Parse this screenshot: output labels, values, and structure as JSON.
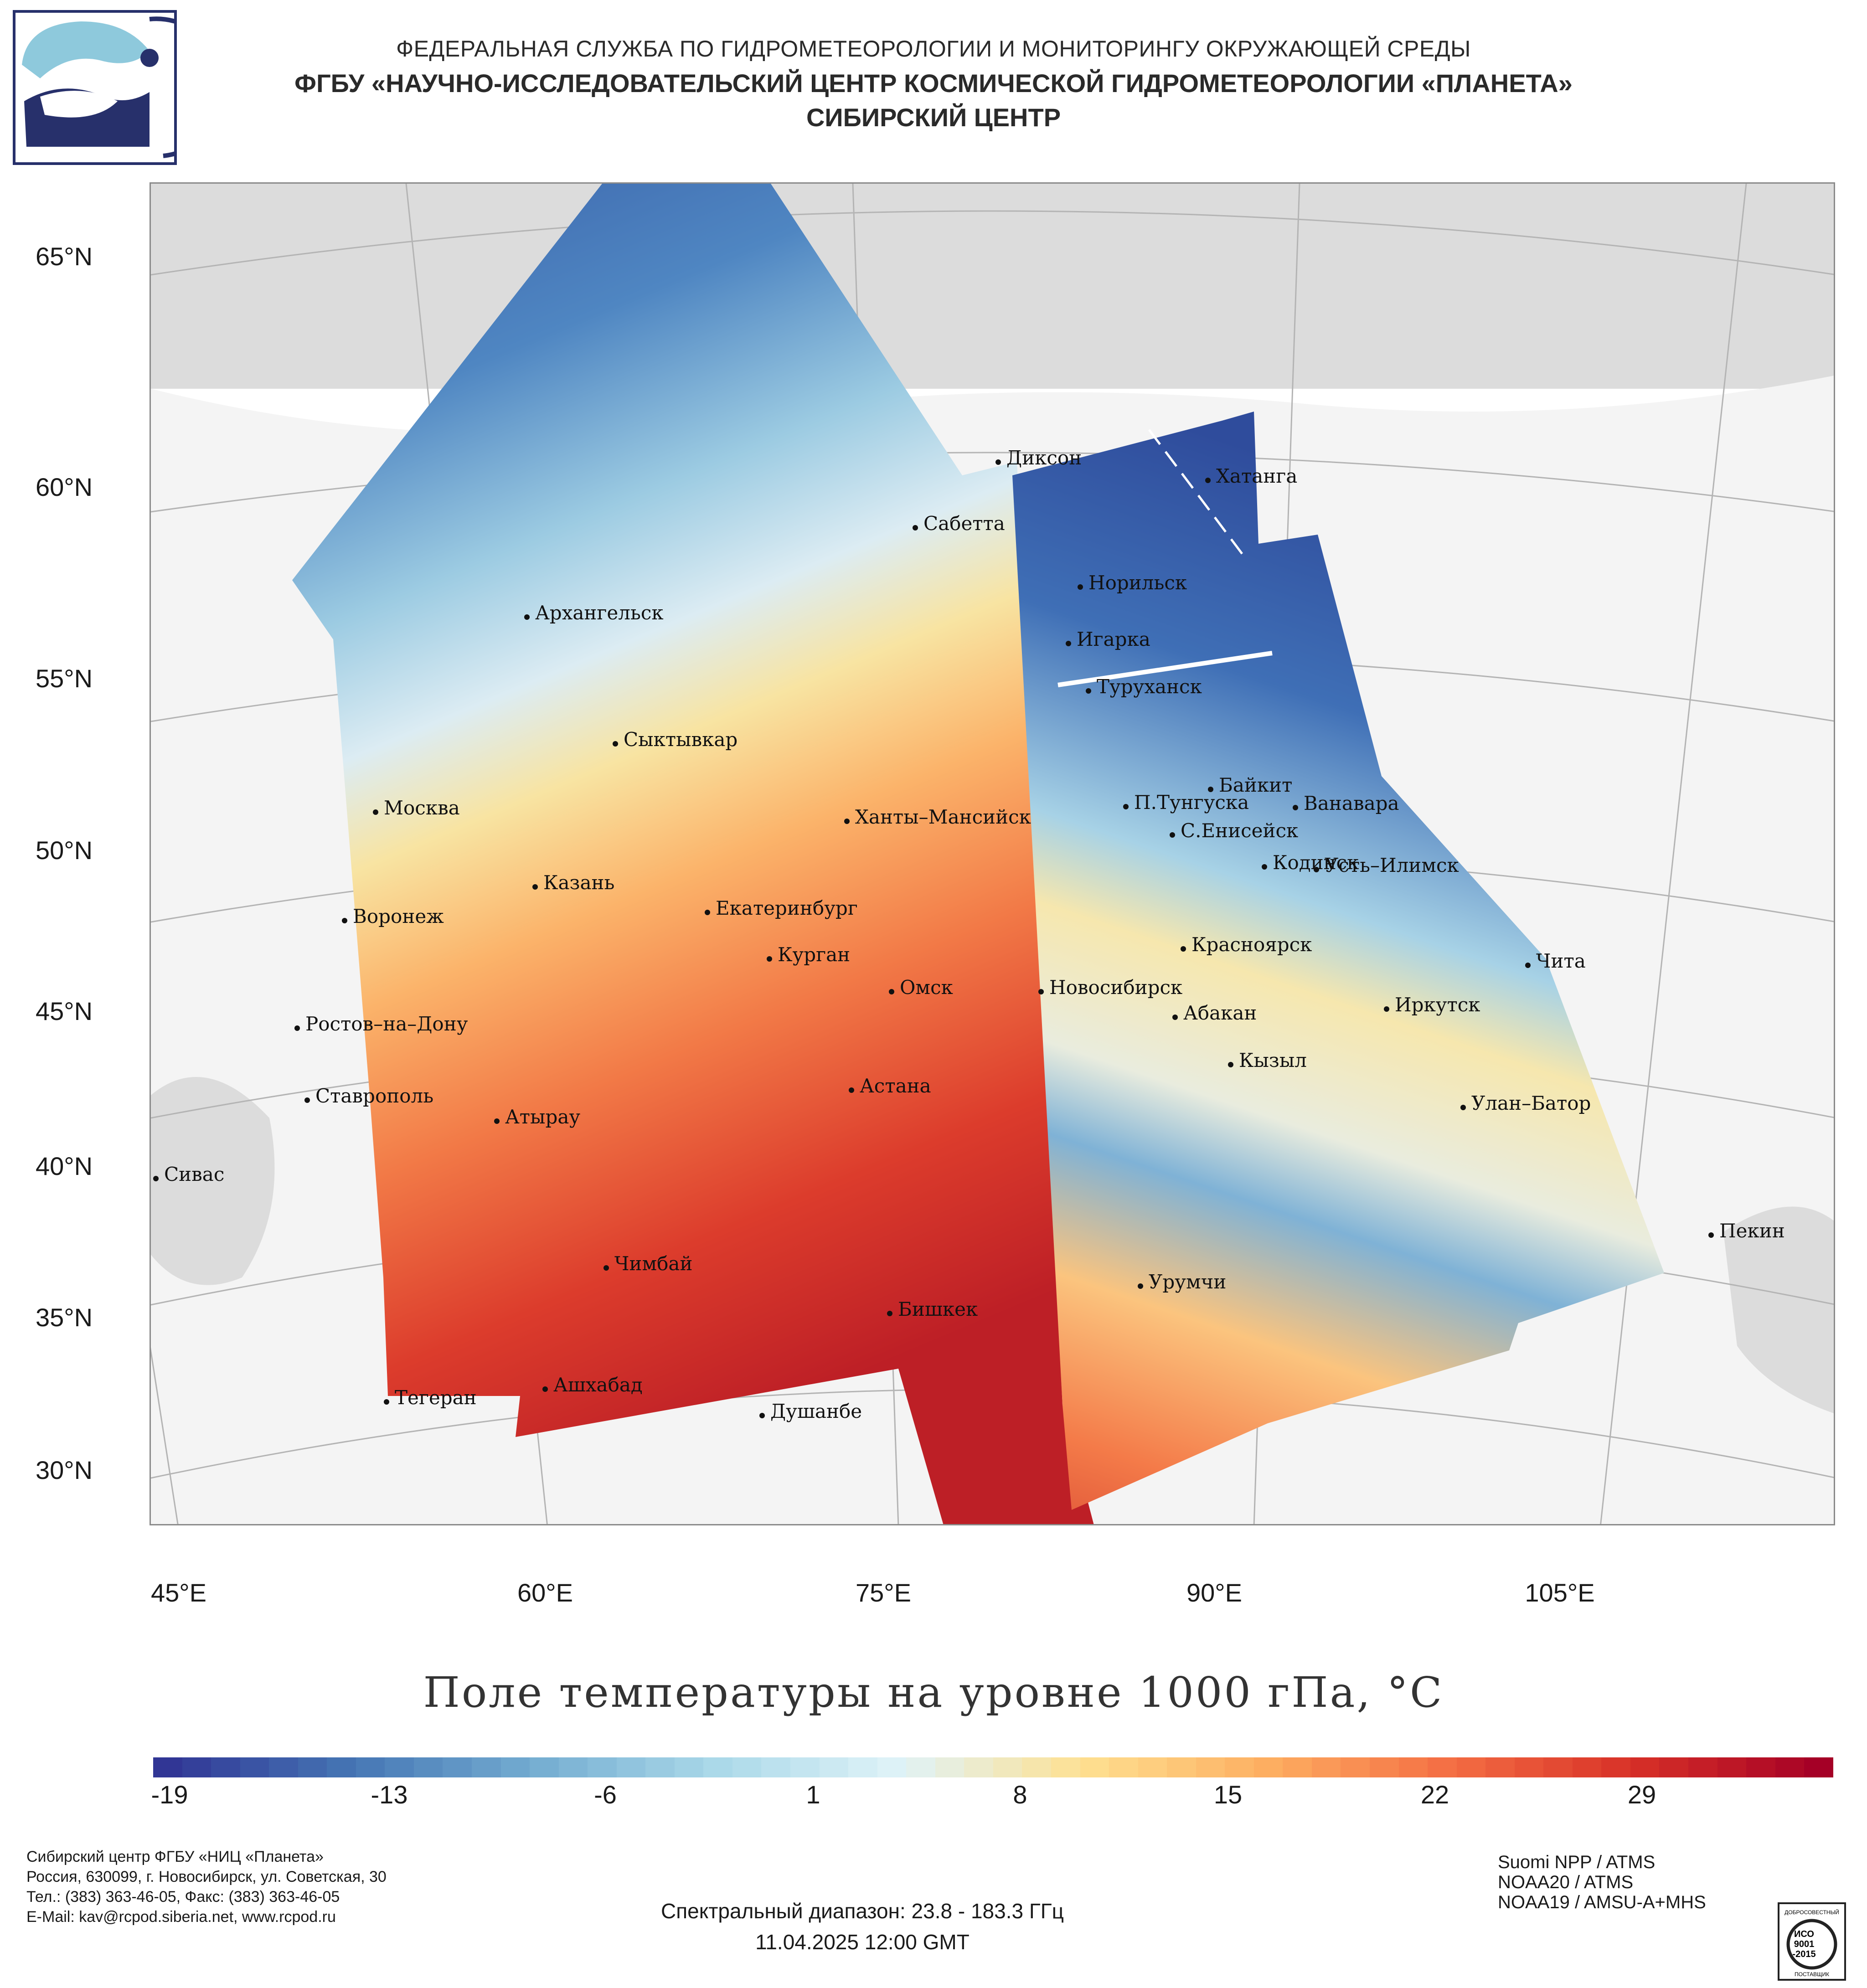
{
  "header": {
    "line1": "ФЕДЕРАЛЬНАЯ СЛУЖБА ПО ГИДРОМЕТЕОРОЛОГИИ И МОНИТОРИНГУ ОКРУЖАЮЩЕЙ СРЕДЫ",
    "line2": "ФГБУ «НАУЧНО-ИССЛЕДОВАТЕЛЬСКИЙ ЦЕНТР КОСМИЧЕСКОЙ ГИДРОМЕТЕОРОЛОГИИ «ПЛАНЕТА»",
    "line3": "СИБИРСКИЙ ЦЕНТР"
  },
  "map": {
    "lat_labels": [
      "65°N",
      "60°N",
      "55°N",
      "50°N",
      "45°N",
      "40°N",
      "35°N",
      "30°N"
    ],
    "lon_labels": [
      "45°E",
      "60°E",
      "75°E",
      "90°E",
      "105°E"
    ],
    "cities": [
      "Диксон",
      "Хатанга",
      "Сабетта",
      "Норильск",
      "Архангельск",
      "Игарка",
      "Туруханск",
      "Сыктывкар",
      "Байкит",
      "Москва",
      "Ханты–Мансийск",
      "П.Тунгуска",
      "Ванавара",
      "С.Енисейск",
      "Казань",
      "Кодинск",
      "Усть–Илимск",
      "Екатеринбург",
      "Воронеж",
      "Красноярск",
      "Курган",
      "Чита",
      "Омск",
      "Новосибирск",
      "Иркутск",
      "Абакан",
      "Ростов–на–Дону",
      "Кызыл",
      "Ставрополь",
      "Астана",
      "Улан–Батор",
      "Атырау",
      "Сивас",
      "Пекин",
      "Чимбай",
      "Урумчи",
      "Бишкек",
      "Ашхабад",
      "Тегеран",
      "Душанбе"
    ],
    "colors": {
      "land": "#dcdcdc",
      "water": "#ffffff",
      "grid": "#b0b0b0"
    }
  },
  "title": "Поле температуры на уровне 1000 гПа, °C",
  "colorbar": {
    "ticks": [
      "-19",
      "-13",
      "-6",
      "1",
      "8",
      "15",
      "22",
      "29"
    ],
    "range": [
      -21.5,
      36.5
    ],
    "colors": [
      "#313695",
      "#4575b4",
      "#74add1",
      "#abd9e9",
      "#e0f3f8",
      "#fee090",
      "#fdae61",
      "#f46d43",
      "#d73027",
      "#a50026"
    ]
  },
  "footer": {
    "org_lines": [
      "Сибирский центр ФГБУ «НИЦ «Планета»",
      "Россия, 630099, г. Новосибирск, ул. Советская, 30",
      "Тел.: (383) 363-46-05, Факс: (383) 363-46-05",
      "E-Mail: kav@rcpod.siberia.net, www.rcpod.ru"
    ],
    "spectral": "Спектральный диапазон: 23.8 - 183.3 ГГц",
    "datetime": "11.04.2025 12:00 GMT",
    "satellites": [
      "Suomi NPP / ATMS",
      "NOAA20 / ATMS",
      "NOAA19 / AMSU-A+MHS"
    ],
    "iso_badge": [
      "ДОБРОСОВЕСТНЫЙ",
      "ИСО",
      "9001",
      "-2015",
      "ПОСТАВЩИК"
    ]
  }
}
